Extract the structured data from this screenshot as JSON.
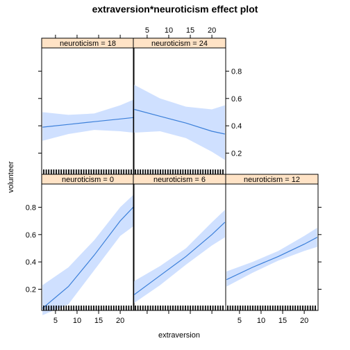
{
  "chart_data": {
    "type": "line",
    "title": "extraversion*neuroticism effect plot",
    "xlabel": "extraversion",
    "ylabel": "volunteer",
    "xlim": [
      1.8,
      23.2
    ],
    "ylim": [
      0.045,
      0.97
    ],
    "x_ticks": [
      5,
      10,
      15,
      20
    ],
    "y_ticks": [
      0.2,
      0.4,
      0.6,
      0.8
    ],
    "y_tick_labels": [
      "0.2",
      "0.4",
      "0.6",
      "0.8"
    ],
    "line_color": "#3b7fd9",
    "band_color": "#cfe0ff",
    "strip_color": "#ffe3c6",
    "panels": [
      {
        "label": "neuroticism = 0",
        "x": [
          2,
          8,
          14,
          20,
          23
        ],
        "fit": [
          0.06,
          0.22,
          0.45,
          0.7,
          0.8
        ],
        "lower": [
          0.01,
          0.09,
          0.34,
          0.59,
          0.66
        ],
        "upper": [
          0.23,
          0.36,
          0.56,
          0.8,
          0.89
        ]
      },
      {
        "label": "neuroticism = 6",
        "x": [
          2,
          8,
          14,
          20,
          23
        ],
        "fit": [
          0.16,
          0.3,
          0.44,
          0.6,
          0.69
        ],
        "lower": [
          0.1,
          0.23,
          0.38,
          0.52,
          0.58
        ],
        "upper": [
          0.26,
          0.37,
          0.5,
          0.69,
          0.78
        ]
      },
      {
        "label": "neuroticism = 12",
        "x": [
          2,
          8,
          14,
          20,
          23
        ],
        "fit": [
          0.27,
          0.36,
          0.44,
          0.53,
          0.58
        ],
        "lower": [
          0.22,
          0.32,
          0.41,
          0.48,
          0.51
        ],
        "upper": [
          0.33,
          0.4,
          0.48,
          0.59,
          0.65
        ]
      },
      {
        "label": "neuroticism = 18",
        "x": [
          2,
          8,
          14,
          20,
          23
        ],
        "fit": [
          0.39,
          0.41,
          0.43,
          0.45,
          0.46
        ],
        "lower": [
          0.29,
          0.34,
          0.37,
          0.36,
          0.35
        ],
        "upper": [
          0.5,
          0.48,
          0.49,
          0.55,
          0.59
        ]
      },
      {
        "label": "neuroticism = 24",
        "x": [
          2,
          8,
          14,
          20,
          23
        ],
        "fit": [
          0.52,
          0.47,
          0.42,
          0.36,
          0.34
        ],
        "lower": [
          0.35,
          0.36,
          0.31,
          0.21,
          0.15
        ],
        "upper": [
          0.7,
          0.6,
          0.54,
          0.52,
          0.55
        ]
      }
    ],
    "rug_x": [
      2,
      3,
      4,
      5,
      6,
      7,
      8,
      9,
      10,
      11,
      12,
      13,
      14,
      15,
      16,
      17,
      18,
      19,
      20,
      21,
      22,
      23
    ]
  }
}
